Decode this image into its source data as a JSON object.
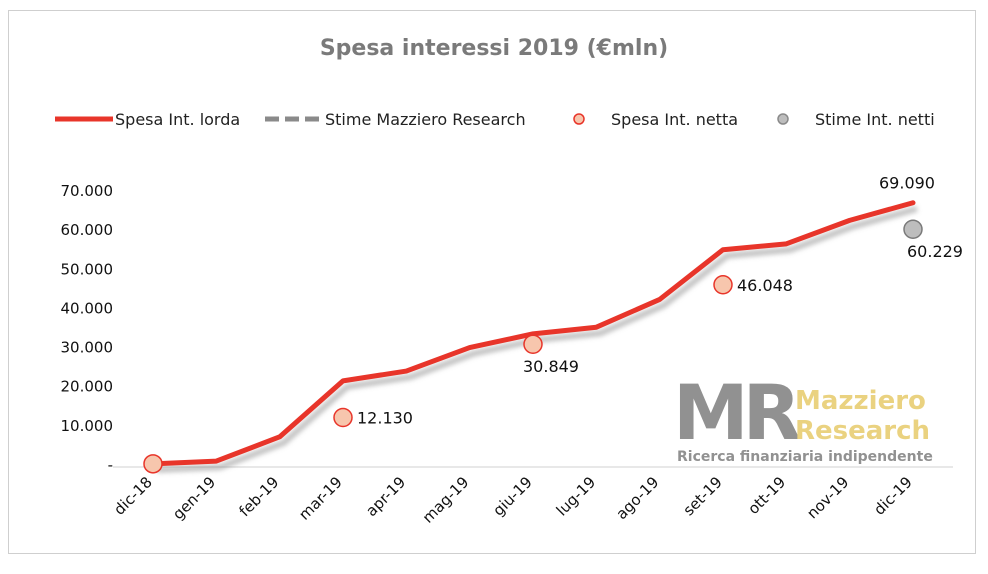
{
  "chart_data": {
    "type": "line",
    "title": "Spesa interessi 2019 (€mln)",
    "categories": [
      "dic-18",
      "gen-19",
      "feb-19",
      "mar-19",
      "apr-19",
      "mag-19",
      "giu-19",
      "lug-19",
      "ago-19",
      "set-19",
      "ott-19",
      "nov-19",
      "dic-19"
    ],
    "ylim": [
      0,
      70000
    ],
    "yticks": [
      {
        "value": 0,
        "label": "-"
      },
      {
        "value": 10000,
        "label": "10.000"
      },
      {
        "value": 20000,
        "label": "20.000"
      },
      {
        "value": 30000,
        "label": "30.000"
      },
      {
        "value": 40000,
        "label": "40.000"
      },
      {
        "value": 50000,
        "label": "50.000"
      },
      {
        "value": 60000,
        "label": "60.000"
      },
      {
        "value": 70000,
        "label": "70.000"
      }
    ],
    "grid": false,
    "legend_position": "top",
    "legend": [
      {
        "label": "Spesa Int. lorda",
        "kind": "line",
        "color": "#e8352a"
      },
      {
        "label": "Stime Mazziero Research",
        "kind": "dashed-line",
        "color": "#8a8a8a"
      },
      {
        "label": "Spesa Int. netta",
        "kind": "marker",
        "color": "#f7c6ad",
        "edge": "#e8352a"
      },
      {
        "label": "Stime Int. netti",
        "kind": "marker",
        "color": "#bdbdbd",
        "edge": "#8a8a8a"
      }
    ],
    "series": [
      {
        "name": "Spesa Int. lorda",
        "type": "line",
        "color": "#e8352a",
        "values": [
          300,
          1000,
          7200,
          21500,
          24000,
          30000,
          33500,
          35200,
          42300,
          55000,
          56500,
          62500,
          67000
        ]
      },
      {
        "name": "Spesa Int. netta",
        "type": "scatter",
        "color": "#f7c6ad",
        "points": [
          {
            "x": "dic-18",
            "y": 300,
            "label": ""
          },
          {
            "x": "mar-19",
            "y": 12130,
            "label": "12.130"
          },
          {
            "x": "giu-19",
            "y": 30849,
            "label": "30.849"
          },
          {
            "x": "set-19",
            "y": 46048,
            "label": "46.048"
          }
        ]
      },
      {
        "name": "Stime Int. netti",
        "type": "scatter",
        "color": "#bdbdbd",
        "points": [
          {
            "x": "dic-19",
            "y": 60229,
            "label": "60.229"
          }
        ]
      }
    ],
    "annotations": [
      {
        "x": "dic-19",
        "y": 69090,
        "label": "69.090"
      }
    ]
  },
  "watermark": {
    "logo": "MR",
    "name_line1": "Mazziero",
    "name_line2": "Research",
    "tagline": "Ricerca finanziaria indipendente"
  }
}
